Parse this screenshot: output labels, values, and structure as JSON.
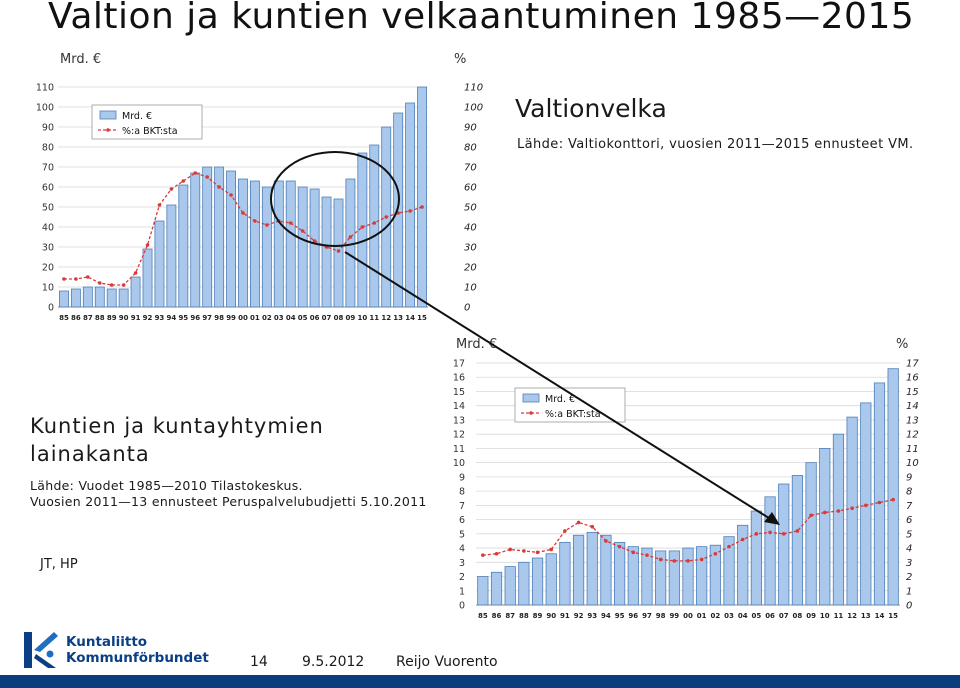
{
  "title": "Valtion ja kuntien velkaantuminen 1985—2015",
  "section1": {
    "title": "Valtionvelka",
    "source": "Lähde: Valtiokonttori, vuosien 2011—2015 ennusteet VM."
  },
  "section2": {
    "title": "Kuntien ja kuntayhtymien lainakanta",
    "source_line1": "Lähde: Vuodet 1985—2010 Tilastokeskus.",
    "source_line2": "Vuosien 2011—13 ennusteet Peruspalvelubudjetti 5.10.2011"
  },
  "author_initials": "JT, HP",
  "footer": {
    "page": "14",
    "date": "9.5.2012",
    "author": "Reijo Vuorento"
  },
  "logo": {
    "line1": "Kuntaliitto",
    "line2": "Kommunförbundet"
  },
  "colors": {
    "bar": "#a9c8ec",
    "bar_edge": "#4f7fb8",
    "line": "#d93a3a",
    "circle": "#111111",
    "arrow": "#111111",
    "footer_bar": "#0b3d7e"
  },
  "chart_data": [
    {
      "type": "bar+line",
      "name": "state-debt",
      "left_unit": "Mrd. €",
      "right_unit": "%",
      "categories": [
        "85",
        "86",
        "87",
        "88",
        "89",
        "90",
        "91",
        "92",
        "93",
        "94",
        "95",
        "96",
        "97",
        "98",
        "99",
        "00",
        "01",
        "02",
        "03",
        "04",
        "05",
        "06",
        "07",
        "08",
        "09",
        "10",
        "11",
        "12",
        "13",
        "14",
        "15"
      ],
      "series": [
        {
          "name": "Mrd. €",
          "type": "bar",
          "axis": "left",
          "values": [
            8,
            9,
            10,
            10,
            9,
            9,
            15,
            29,
            43,
            51,
            61,
            67,
            70,
            70,
            68,
            64,
            63,
            60,
            63,
            63,
            60,
            59,
            55,
            54,
            64,
            77,
            81,
            90,
            97,
            102,
            110
          ]
        },
        {
          "name": "%:a BKT:sta",
          "type": "line",
          "axis": "right",
          "values": [
            14,
            14,
            15,
            12,
            11,
            11,
            17,
            31,
            51,
            59,
            63,
            67,
            65,
            60,
            56,
            47,
            43,
            41,
            43,
            42,
            38,
            33,
            30,
            28,
            35,
            40,
            42,
            45,
            47,
            48,
            50
          ]
        }
      ],
      "ylim": [
        0,
        110
      ],
      "yticks": [
        0,
        10,
        20,
        30,
        40,
        50,
        60,
        70,
        80,
        90,
        100,
        110
      ],
      "legend": [
        "Mrd. €",
        "%:a BKT:sta"
      ],
      "legend_position": "top-left"
    },
    {
      "type": "bar+line",
      "name": "municipal-debt",
      "left_unit": "Mrd. €",
      "right_unit": "%",
      "categories": [
        "85",
        "86",
        "87",
        "88",
        "89",
        "90",
        "91",
        "92",
        "93",
        "94",
        "95",
        "96",
        "97",
        "98",
        "99",
        "00",
        "01",
        "02",
        "03",
        "04",
        "05",
        "06",
        "07",
        "08",
        "09",
        "10",
        "11",
        "12",
        "13",
        "14",
        "15"
      ],
      "series": [
        {
          "name": "Mrd. €",
          "type": "bar",
          "axis": "left",
          "values": [
            2,
            2.3,
            2.7,
            3,
            3.3,
            3.6,
            4.4,
            4.9,
            5.1,
            4.9,
            4.4,
            4.1,
            4,
            3.8,
            3.8,
            4,
            4.1,
            4.2,
            4.8,
            5.6,
            6.6,
            7.6,
            8.5,
            9.1,
            10,
            11,
            12,
            13.2,
            14.2,
            15.6,
            16.6
          ]
        },
        {
          "name": "%:a BKT:sta",
          "type": "line",
          "axis": "right",
          "values": [
            3.5,
            3.6,
            3.9,
            3.8,
            3.7,
            3.9,
            5.2,
            5.8,
            5.5,
            4.5,
            4.1,
            3.7,
            3.5,
            3.2,
            3.1,
            3.1,
            3.2,
            3.6,
            4.1,
            4.6,
            5.0,
            5.1,
            5.0,
            5.2,
            6.3,
            6.5,
            6.6,
            6.8,
            7.0,
            7.2,
            7.4
          ]
        }
      ],
      "ylim": [
        0,
        17
      ],
      "yticks": [
        0,
        1,
        2,
        3,
        4,
        5,
        6,
        7,
        8,
        9,
        10,
        11,
        12,
        13,
        14,
        15,
        16,
        17
      ],
      "legend": [
        "Mrd. €",
        "%:a BKT:sta"
      ],
      "legend_position": "top-left"
    }
  ]
}
